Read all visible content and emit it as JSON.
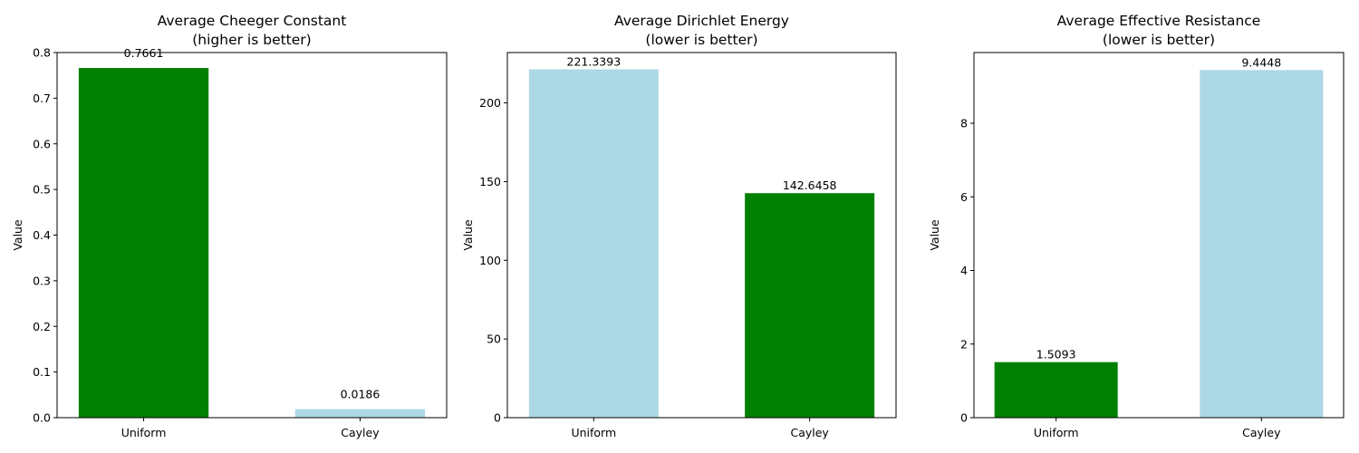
{
  "chart_data": [
    {
      "type": "bar",
      "title": "Average Cheeger Constant",
      "subtitle": "(higher is better)",
      "ylabel": "Value",
      "categories": [
        "Uniform",
        "Cayley"
      ],
      "values": [
        0.7661,
        0.0186
      ],
      "value_labels": [
        "0.7661",
        "0.0186"
      ],
      "colors": [
        "#008000",
        "#add8e6"
      ],
      "ylim": [
        0,
        0.8
      ],
      "yticks": [
        0.0,
        0.1,
        0.2,
        0.3,
        0.4,
        0.5,
        0.6,
        0.7,
        0.8
      ],
      "ytick_labels": [
        "0.0",
        "0.1",
        "0.2",
        "0.3",
        "0.4",
        "0.5",
        "0.6",
        "0.7",
        "0.8"
      ],
      "grid": false
    },
    {
      "type": "bar",
      "title": "Average Dirichlet Energy",
      "subtitle": "(lower is better)",
      "ylabel": "Value",
      "categories": [
        "Uniform",
        "Cayley"
      ],
      "values": [
        221.3393,
        142.6458
      ],
      "value_labels": [
        "221.3393",
        "142.6458"
      ],
      "colors": [
        "#add8e6",
        "#008000"
      ],
      "ylim": [
        0,
        232
      ],
      "yticks": [
        0,
        50,
        100,
        150,
        200
      ],
      "ytick_labels": [
        "0",
        "50",
        "100",
        "150",
        "200"
      ],
      "grid": false
    },
    {
      "type": "bar",
      "title": "Average Effective Resistance",
      "subtitle": "(lower is better)",
      "ylabel": "Value",
      "categories": [
        "Uniform",
        "Cayley"
      ],
      "values": [
        1.5093,
        9.4448
      ],
      "value_labels": [
        "1.5093",
        "9.4448"
      ],
      "colors": [
        "#008000",
        "#add8e6"
      ],
      "ylim": [
        0,
        9.92
      ],
      "yticks": [
        0,
        2,
        4,
        6,
        8
      ],
      "ytick_labels": [
        "0",
        "2",
        "4",
        "6",
        "8"
      ],
      "grid": false
    }
  ]
}
